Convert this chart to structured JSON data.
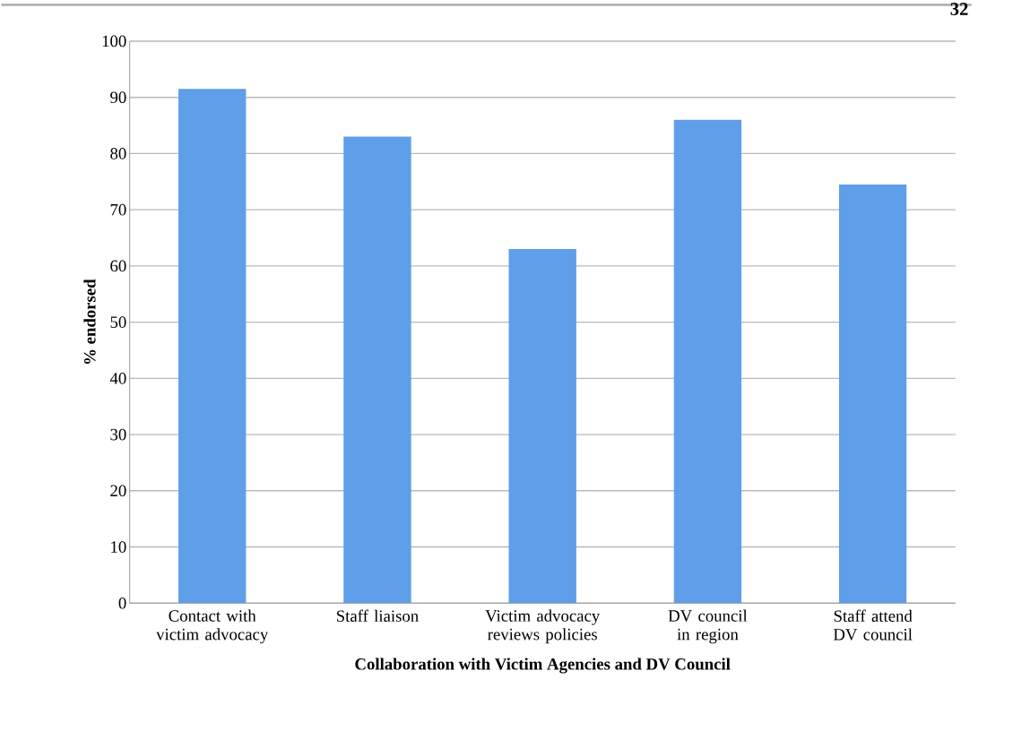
{
  "chart_data": {
    "type": "bar",
    "xlabel": "Collaboration with Victim Agencies and DV Council",
    "ylabel": "% endorsed",
    "categories": [
      "Contact with victim advocacy",
      "Staff liaison",
      "Victim advocacy reviews policies",
      "DV council in region",
      "Staff attend DV council"
    ],
    "values": [
      91.5,
      83,
      63,
      86,
      74.5
    ],
    "color": "#5f9ee8",
    "ylim": [
      0,
      100
    ],
    "yticks": [
      0,
      10,
      20,
      30,
      40,
      50,
      60,
      70,
      80,
      90,
      100
    ],
    "grid": "y",
    "annotations": [
      "32"
    ]
  }
}
